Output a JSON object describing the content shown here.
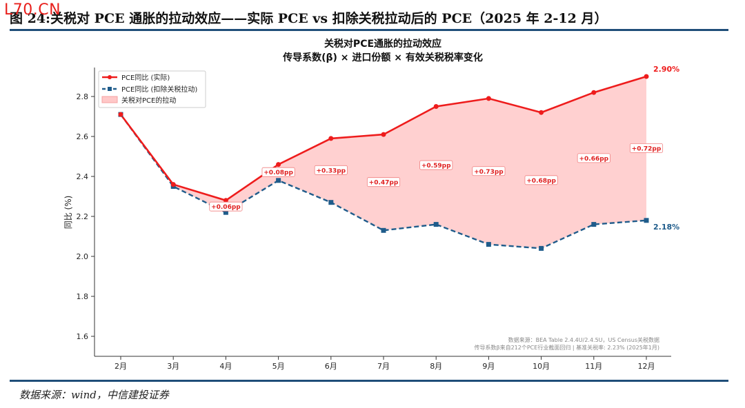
{
  "watermark": "L70.CN",
  "figure_title": "图 24:关税对 PCE 通胀的拉动效应——实际 PCE vs  扣除关税拉动后的 PCE（2025 年 2-12 月）",
  "source": "数据来源：wind，中信建投证券",
  "colors": {
    "actual": "#ee1c1c",
    "ex_tariff": "#1f5c8b",
    "fill": "#ffc8c8",
    "rule": "#1f4e79"
  },
  "chart_data": {
    "type": "line",
    "title": "关税对PCE通胀的拉动效应",
    "subtitle": "传导系数(β) × 进口份额 × 有效关税税率变化",
    "ylabel": "同比 (%)",
    "xlabel": "",
    "categories": [
      "2月",
      "3月",
      "4月",
      "5月",
      "6月",
      "7月",
      "8月",
      "9月",
      "10月",
      "11月",
      "12月"
    ],
    "ylim": [
      1.5,
      2.95
    ],
    "yticks": [
      "1.6",
      "1.8",
      "2.0",
      "2.2",
      "2.4",
      "2.6",
      "2.8"
    ],
    "grid": false,
    "legend_position": "top-left",
    "series": [
      {
        "name": "PCE同比 (实际)",
        "values": [
          2.71,
          2.36,
          2.28,
          2.46,
          2.59,
          2.61,
          2.75,
          2.79,
          2.72,
          2.82,
          2.9
        ]
      },
      {
        "name": "PCE同比 (扣除关税拉动)",
        "values": [
          2.71,
          2.35,
          2.22,
          2.38,
          2.27,
          2.13,
          2.16,
          2.06,
          2.04,
          2.16,
          2.18
        ]
      }
    ],
    "fill_label": "关税对PCE的拉动",
    "diff_labels": [
      "",
      "",
      "+0.06pp",
      "+0.08pp",
      "+0.33pp",
      "+0.47pp",
      "+0.59pp",
      "+0.73pp",
      "+0.68pp",
      "+0.66pp",
      "+0.72pp"
    ],
    "end_labels": {
      "actual": "2.90%",
      "ex_tariff": "2.18%"
    },
    "notes": [
      "数据来源：BEA Table 2.4.4U/2.4.5U，US Census关税数据",
      "传导系数β来自212个PCE行业截面回归 | 基准关税率: 2.23% (2025年1月)"
    ]
  }
}
